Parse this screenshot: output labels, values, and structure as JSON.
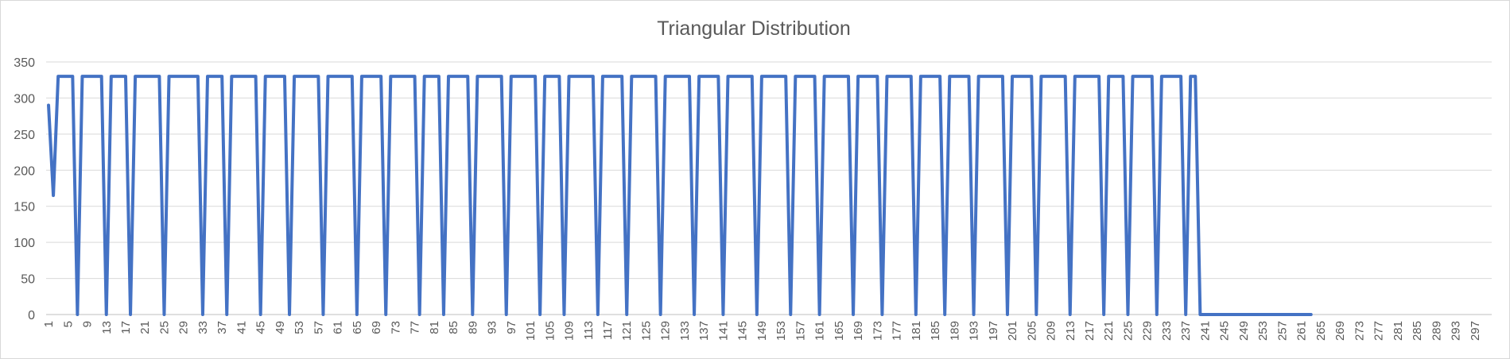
{
  "chart_data": {
    "type": "line",
    "title": "Triangular Distribution",
    "xlabel": "",
    "ylabel": "",
    "ylim": [
      0,
      350
    ],
    "yticks": [
      0,
      50,
      100,
      150,
      200,
      250,
      300,
      350
    ],
    "x_range": [
      1,
      300
    ],
    "x_tick_labels": [
      "1",
      "5",
      "9",
      "13",
      "17",
      "21",
      "25",
      "29",
      "33",
      "37",
      "41",
      "45",
      "49",
      "53",
      "57",
      "61",
      "65",
      "69",
      "73",
      "77",
      "81",
      "85",
      "89",
      "93",
      "97",
      "101",
      "105",
      "109",
      "113",
      "117",
      "121",
      "125",
      "129",
      "133",
      "137",
      "141",
      "145",
      "149",
      "153",
      "157",
      "161",
      "165",
      "169",
      "173",
      "177",
      "181",
      "185",
      "189",
      "193",
      "197",
      "201",
      "205",
      "209",
      "213",
      "217",
      "221",
      "225",
      "229",
      "233",
      "237",
      "241",
      "245",
      "249",
      "253",
      "257",
      "261",
      "265",
      "269",
      "273",
      "277",
      "281",
      "285",
      "289",
      "293",
      "297"
    ],
    "grid": true,
    "legend": "none",
    "series_color": "#4472C4",
    "series": [
      {
        "values": [
          290,
          165,
          330,
          330,
          330,
          330,
          0,
          330,
          330,
          330,
          330,
          330,
          0,
          330,
          330,
          330,
          330,
          0,
          330,
          330,
          330,
          330,
          330,
          330,
          0,
          330,
          330,
          330,
          330,
          330,
          330,
          330,
          0,
          330,
          330,
          330,
          330,
          0,
          330,
          330,
          330,
          330,
          330,
          330,
          0,
          330,
          330,
          330,
          330,
          330,
          0,
          330,
          330,
          330,
          330,
          330,
          330,
          0,
          330,
          330,
          330,
          330,
          330,
          330,
          0,
          330,
          330,
          330,
          330,
          330,
          0,
          330,
          330,
          330,
          330,
          330,
          330,
          0,
          330,
          330,
          330,
          330,
          0,
          330,
          330,
          330,
          330,
          330,
          0,
          330,
          330,
          330,
          330,
          330,
          330,
          0,
          330,
          330,
          330,
          330,
          330,
          330,
          0,
          330,
          330,
          330,
          330,
          0,
          330,
          330,
          330,
          330,
          330,
          330,
          0,
          330,
          330,
          330,
          330,
          330,
          0,
          330,
          330,
          330,
          330,
          330,
          330,
          0,
          330,
          330,
          330,
          330,
          330,
          330,
          0,
          330,
          330,
          330,
          330,
          330,
          0,
          330,
          330,
          330,
          330,
          330,
          330,
          0,
          330,
          330,
          330,
          330,
          330,
          330,
          0,
          330,
          330,
          330,
          330,
          330,
          0,
          330,
          330,
          330,
          330,
          330,
          330,
          0,
          330,
          330,
          330,
          330,
          330,
          0,
          330,
          330,
          330,
          330,
          330,
          330,
          0,
          330,
          330,
          330,
          330,
          330,
          0,
          330,
          330,
          330,
          330,
          330,
          0,
          330,
          330,
          330,
          330,
          330,
          330,
          0,
          330,
          330,
          330,
          330,
          330,
          0,
          330,
          330,
          330,
          330,
          330,
          330,
          0,
          330,
          330,
          330,
          330,
          330,
          330,
          0,
          330,
          330,
          330,
          330,
          0,
          330,
          330,
          330,
          330,
          330,
          0,
          330,
          330,
          330,
          330,
          330,
          0,
          330,
          330,
          0,
          0,
          0,
          0,
          0,
          0,
          0,
          0,
          0,
          0,
          0,
          0,
          0,
          0,
          0,
          0,
          0,
          0,
          0,
          0,
          0,
          0,
          0,
          0
        ]
      }
    ]
  }
}
